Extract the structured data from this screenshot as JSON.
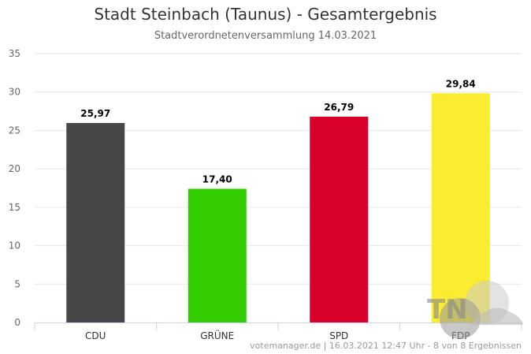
{
  "chart_data": {
    "type": "bar",
    "title": "Stadt Steinbach (Taunus) - Gesamtergebnis",
    "subtitle": "Stadtverordnetenversammlung 14.03.2021",
    "categories": [
      "CDU",
      "GRÜNE",
      "SPD",
      "FDP"
    ],
    "values": [
      25.97,
      17.4,
      26.79,
      29.84
    ],
    "value_labels": [
      "25,97",
      "17,40",
      "26,79",
      "29,84"
    ],
    "colors": [
      "#474747",
      "#33cc00",
      "#d9002b",
      "#f9ec31"
    ],
    "ylim": [
      0,
      35
    ],
    "yticks": [
      0,
      5,
      10,
      15,
      20,
      25,
      30,
      35
    ],
    "grid": true,
    "xlabel": "",
    "ylabel": ""
  },
  "credits": "votemanager.de | 16.03.2021 12:47 Uhr - 8 von 8 Ergebnissen",
  "watermark": {
    "text": "TN"
  }
}
